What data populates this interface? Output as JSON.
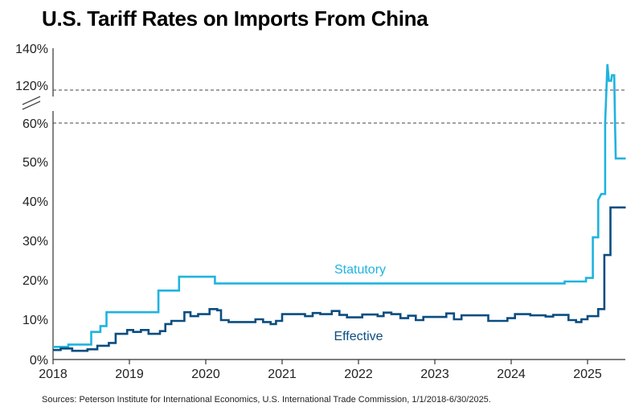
{
  "chart_data": {
    "type": "line",
    "title": "U.S. Tariff Rates on Imports From China",
    "source": "Sources: Peterson Institute for International Economics, U.S. International Trade Commission, 1/1/2018-6/30/2025.",
    "x_tick_labels": [
      "2018",
      "2019",
      "2020",
      "2021",
      "2022",
      "2023",
      "2024",
      "2025"
    ],
    "y_tick_labels": [
      "0%",
      "10%",
      "20%",
      "30%",
      "40%",
      "50%",
      "60%",
      "120%",
      "140%"
    ],
    "y_axis_break": "60% to 120%",
    "reference_lines": [
      60,
      120
    ],
    "xlim": [
      2018.0,
      2025.5
    ],
    "colors": {
      "statutory": "#1fb3e0",
      "effective": "#0a4d80"
    },
    "series": [
      {
        "name": "Statutory",
        "color": "#1fb3e0",
        "points": [
          [
            2018.0,
            3.2
          ],
          [
            2018.2,
            3.2
          ],
          [
            2018.2,
            3.8
          ],
          [
            2018.5,
            3.8
          ],
          [
            2018.5,
            7.0
          ],
          [
            2018.62,
            7.0
          ],
          [
            2018.62,
            8.5
          ],
          [
            2018.7,
            8.5
          ],
          [
            2018.7,
            12.0
          ],
          [
            2019.38,
            12.0
          ],
          [
            2019.38,
            17.5
          ],
          [
            2019.65,
            17.5
          ],
          [
            2019.65,
            21.0
          ],
          [
            2020.12,
            21.0
          ],
          [
            2020.12,
            19.3
          ],
          [
            2024.7,
            19.3
          ],
          [
            2024.7,
            19.8
          ],
          [
            2024.98,
            19.8
          ],
          [
            2024.98,
            20.7
          ],
          [
            2025.07,
            20.7
          ],
          [
            2025.07,
            31.0
          ],
          [
            2025.14,
            31.0
          ],
          [
            2025.14,
            40.5
          ],
          [
            2025.18,
            42.0
          ],
          [
            2025.23,
            42.0
          ],
          [
            2025.23,
            60.0
          ],
          [
            2025.26,
            134.0
          ],
          [
            2025.28,
            125.0
          ],
          [
            2025.31,
            125.0
          ],
          [
            2025.32,
            128.0
          ],
          [
            2025.35,
            128.0
          ],
          [
            2025.36,
            60.0
          ],
          [
            2025.37,
            51.0
          ],
          [
            2025.5,
            51.0
          ]
        ]
      },
      {
        "name": "Effective",
        "color": "#0a4d80",
        "points": [
          [
            2018.0,
            2.4
          ],
          [
            2018.1,
            2.4
          ],
          [
            2018.1,
            2.8
          ],
          [
            2018.25,
            2.8
          ],
          [
            2018.25,
            2.2
          ],
          [
            2018.45,
            2.2
          ],
          [
            2018.45,
            2.6
          ],
          [
            2018.58,
            2.6
          ],
          [
            2018.58,
            3.5
          ],
          [
            2018.73,
            3.5
          ],
          [
            2018.73,
            4.2
          ],
          [
            2018.82,
            4.2
          ],
          [
            2018.82,
            6.5
          ],
          [
            2018.97,
            6.5
          ],
          [
            2018.97,
            7.5
          ],
          [
            2019.05,
            7.5
          ],
          [
            2019.05,
            7.0
          ],
          [
            2019.15,
            7.0
          ],
          [
            2019.15,
            7.5
          ],
          [
            2019.25,
            7.5
          ],
          [
            2019.25,
            6.5
          ],
          [
            2019.4,
            6.5
          ],
          [
            2019.4,
            7.2
          ],
          [
            2019.47,
            7.2
          ],
          [
            2019.47,
            9.0
          ],
          [
            2019.55,
            9.0
          ],
          [
            2019.55,
            9.8
          ],
          [
            2019.72,
            9.8
          ],
          [
            2019.72,
            12.0
          ],
          [
            2019.8,
            12.0
          ],
          [
            2019.8,
            11.0
          ],
          [
            2019.9,
            11.0
          ],
          [
            2019.9,
            11.5
          ],
          [
            2020.05,
            11.5
          ],
          [
            2020.05,
            12.8
          ],
          [
            2020.15,
            12.8
          ],
          [
            2020.15,
            12.5
          ],
          [
            2020.2,
            12.5
          ],
          [
            2020.2,
            10.0
          ],
          [
            2020.3,
            10.0
          ],
          [
            2020.3,
            9.5
          ],
          [
            2020.65,
            9.5
          ],
          [
            2020.65,
            10.2
          ],
          [
            2020.75,
            10.2
          ],
          [
            2020.75,
            9.5
          ],
          [
            2020.85,
            9.5
          ],
          [
            2020.85,
            9.0
          ],
          [
            2020.92,
            9.0
          ],
          [
            2020.92,
            9.8
          ],
          [
            2021.0,
            9.8
          ],
          [
            2021.0,
            11.5
          ],
          [
            2021.3,
            11.5
          ],
          [
            2021.3,
            11.0
          ],
          [
            2021.4,
            11.0
          ],
          [
            2021.4,
            11.8
          ],
          [
            2021.5,
            11.8
          ],
          [
            2021.5,
            11.5
          ],
          [
            2021.65,
            11.5
          ],
          [
            2021.65,
            12.3
          ],
          [
            2021.75,
            12.3
          ],
          [
            2021.75,
            11.3
          ],
          [
            2021.85,
            11.3
          ],
          [
            2021.85,
            10.7
          ],
          [
            2022.05,
            10.7
          ],
          [
            2022.05,
            11.4
          ],
          [
            2022.25,
            11.4
          ],
          [
            2022.25,
            11.0
          ],
          [
            2022.33,
            11.0
          ],
          [
            2022.33,
            11.9
          ],
          [
            2022.43,
            11.9
          ],
          [
            2022.43,
            11.5
          ],
          [
            2022.55,
            11.5
          ],
          [
            2022.55,
            10.5
          ],
          [
            2022.65,
            10.5
          ],
          [
            2022.65,
            11.1
          ],
          [
            2022.75,
            11.1
          ],
          [
            2022.75,
            10.0
          ],
          [
            2022.85,
            10.0
          ],
          [
            2022.85,
            10.8
          ],
          [
            2023.15,
            10.8
          ],
          [
            2023.15,
            11.7
          ],
          [
            2023.25,
            11.7
          ],
          [
            2023.25,
            10.2
          ],
          [
            2023.35,
            10.2
          ],
          [
            2023.35,
            11.2
          ],
          [
            2023.7,
            11.2
          ],
          [
            2023.7,
            9.8
          ],
          [
            2023.95,
            9.8
          ],
          [
            2023.95,
            10.5
          ],
          [
            2024.05,
            10.5
          ],
          [
            2024.05,
            11.5
          ],
          [
            2024.25,
            11.5
          ],
          [
            2024.25,
            11.2
          ],
          [
            2024.45,
            11.2
          ],
          [
            2024.45,
            10.9
          ],
          [
            2024.55,
            10.9
          ],
          [
            2024.55,
            11.3
          ],
          [
            2024.75,
            11.3
          ],
          [
            2024.75,
            10.0
          ],
          [
            2024.85,
            10.0
          ],
          [
            2024.85,
            9.5
          ],
          [
            2024.92,
            9.5
          ],
          [
            2024.92,
            10.2
          ],
          [
            2025.0,
            10.2
          ],
          [
            2025.0,
            11.0
          ],
          [
            2025.14,
            11.0
          ],
          [
            2025.14,
            12.8
          ],
          [
            2025.22,
            12.8
          ],
          [
            2025.22,
            26.5
          ],
          [
            2025.3,
            26.5
          ],
          [
            2025.3,
            38.6
          ],
          [
            2025.5,
            38.6
          ]
        ]
      }
    ]
  }
}
